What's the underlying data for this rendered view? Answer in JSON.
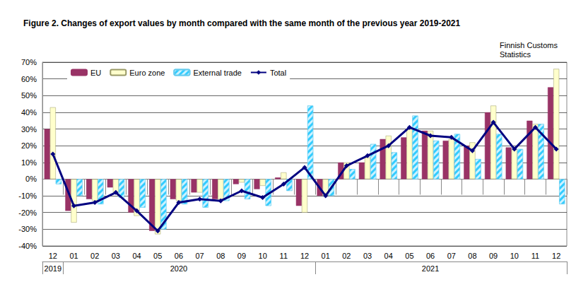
{
  "chart_data": {
    "type": "bar",
    "title": "Figure 2. Changes of export values by month compared with the same month of the previous year 2019-2021",
    "subtitle": "Finnish Customs Statistics",
    "categories": [
      "12",
      "01",
      "02",
      "03",
      "04",
      "05",
      "06",
      "07",
      "08",
      "09",
      "10",
      "11",
      "12",
      "01",
      "02",
      "03",
      "04",
      "05",
      "06",
      "07",
      "08",
      "09",
      "10",
      "11",
      "12"
    ],
    "years": [
      "2019",
      "2020",
      "2020",
      "2020",
      "2020",
      "2020",
      "2020",
      "2020",
      "2020",
      "2020",
      "2020",
      "2020",
      "2020",
      "2021",
      "2021",
      "2021",
      "2021",
      "2021",
      "2021",
      "2021",
      "2021",
      "2021",
      "2021",
      "2021",
      "2021"
    ],
    "series": [
      {
        "name": "EU",
        "type": "bar",
        "color": "#993366",
        "values": [
          30,
          -19,
          -12,
          -5,
          -20,
          -31,
          -12,
          -8,
          -12,
          -3,
          -6,
          1,
          -16,
          -10,
          10,
          10,
          24,
          25,
          29,
          23,
          20,
          40,
          19,
          35,
          55
        ]
      },
      {
        "name": "Euro zone",
        "type": "bar",
        "color": "#FFFFCC",
        "values": [
          43,
          -26,
          -13,
          -8,
          -22,
          -33,
          -13,
          -8,
          -12,
          -2,
          -4,
          4,
          -20,
          -10,
          10,
          13,
          26,
          30,
          29,
          24,
          22,
          44,
          18,
          33,
          66
        ]
      },
      {
        "name": "External trade",
        "type": "bar",
        "color": "#33CCFF",
        "values": [
          -3,
          -10,
          -15,
          -11,
          -17,
          -30,
          -15,
          -17,
          -13,
          -12,
          -16,
          -7,
          44,
          -10,
          6,
          21,
          16,
          38,
          23,
          27,
          12,
          27,
          18,
          33,
          -15
        ]
      },
      {
        "name": "Total",
        "type": "line",
        "color": "#000080",
        "marker": "diamond",
        "line_style": "solid",
        "values": [
          15,
          -16,
          -14,
          -8,
          -19,
          -31,
          -14,
          -12,
          -13,
          -7,
          -11,
          -3,
          7,
          -10,
          8,
          14,
          20,
          31,
          26,
          25,
          17,
          34,
          18,
          31,
          18
        ]
      }
    ],
    "ylim": [
      -40,
      70
    ],
    "yticks": [
      {
        "value": -40,
        "label": "-40%"
      },
      {
        "value": -30,
        "label": "-30%"
      },
      {
        "value": -20,
        "label": "-20%"
      },
      {
        "value": -10,
        "label": "-10%"
      },
      {
        "value": 0,
        "label": "0%"
      },
      {
        "value": 10,
        "label": "10%"
      },
      {
        "value": 20,
        "label": "20%"
      },
      {
        "value": 30,
        "label": "30%"
      },
      {
        "value": 40,
        "label": "40%"
      },
      {
        "value": 50,
        "label": "50%"
      },
      {
        "value": 60,
        "label": "60%"
      },
      {
        "value": 70,
        "label": "70%"
      }
    ],
    "grid": true,
    "legend": "top-left"
  }
}
